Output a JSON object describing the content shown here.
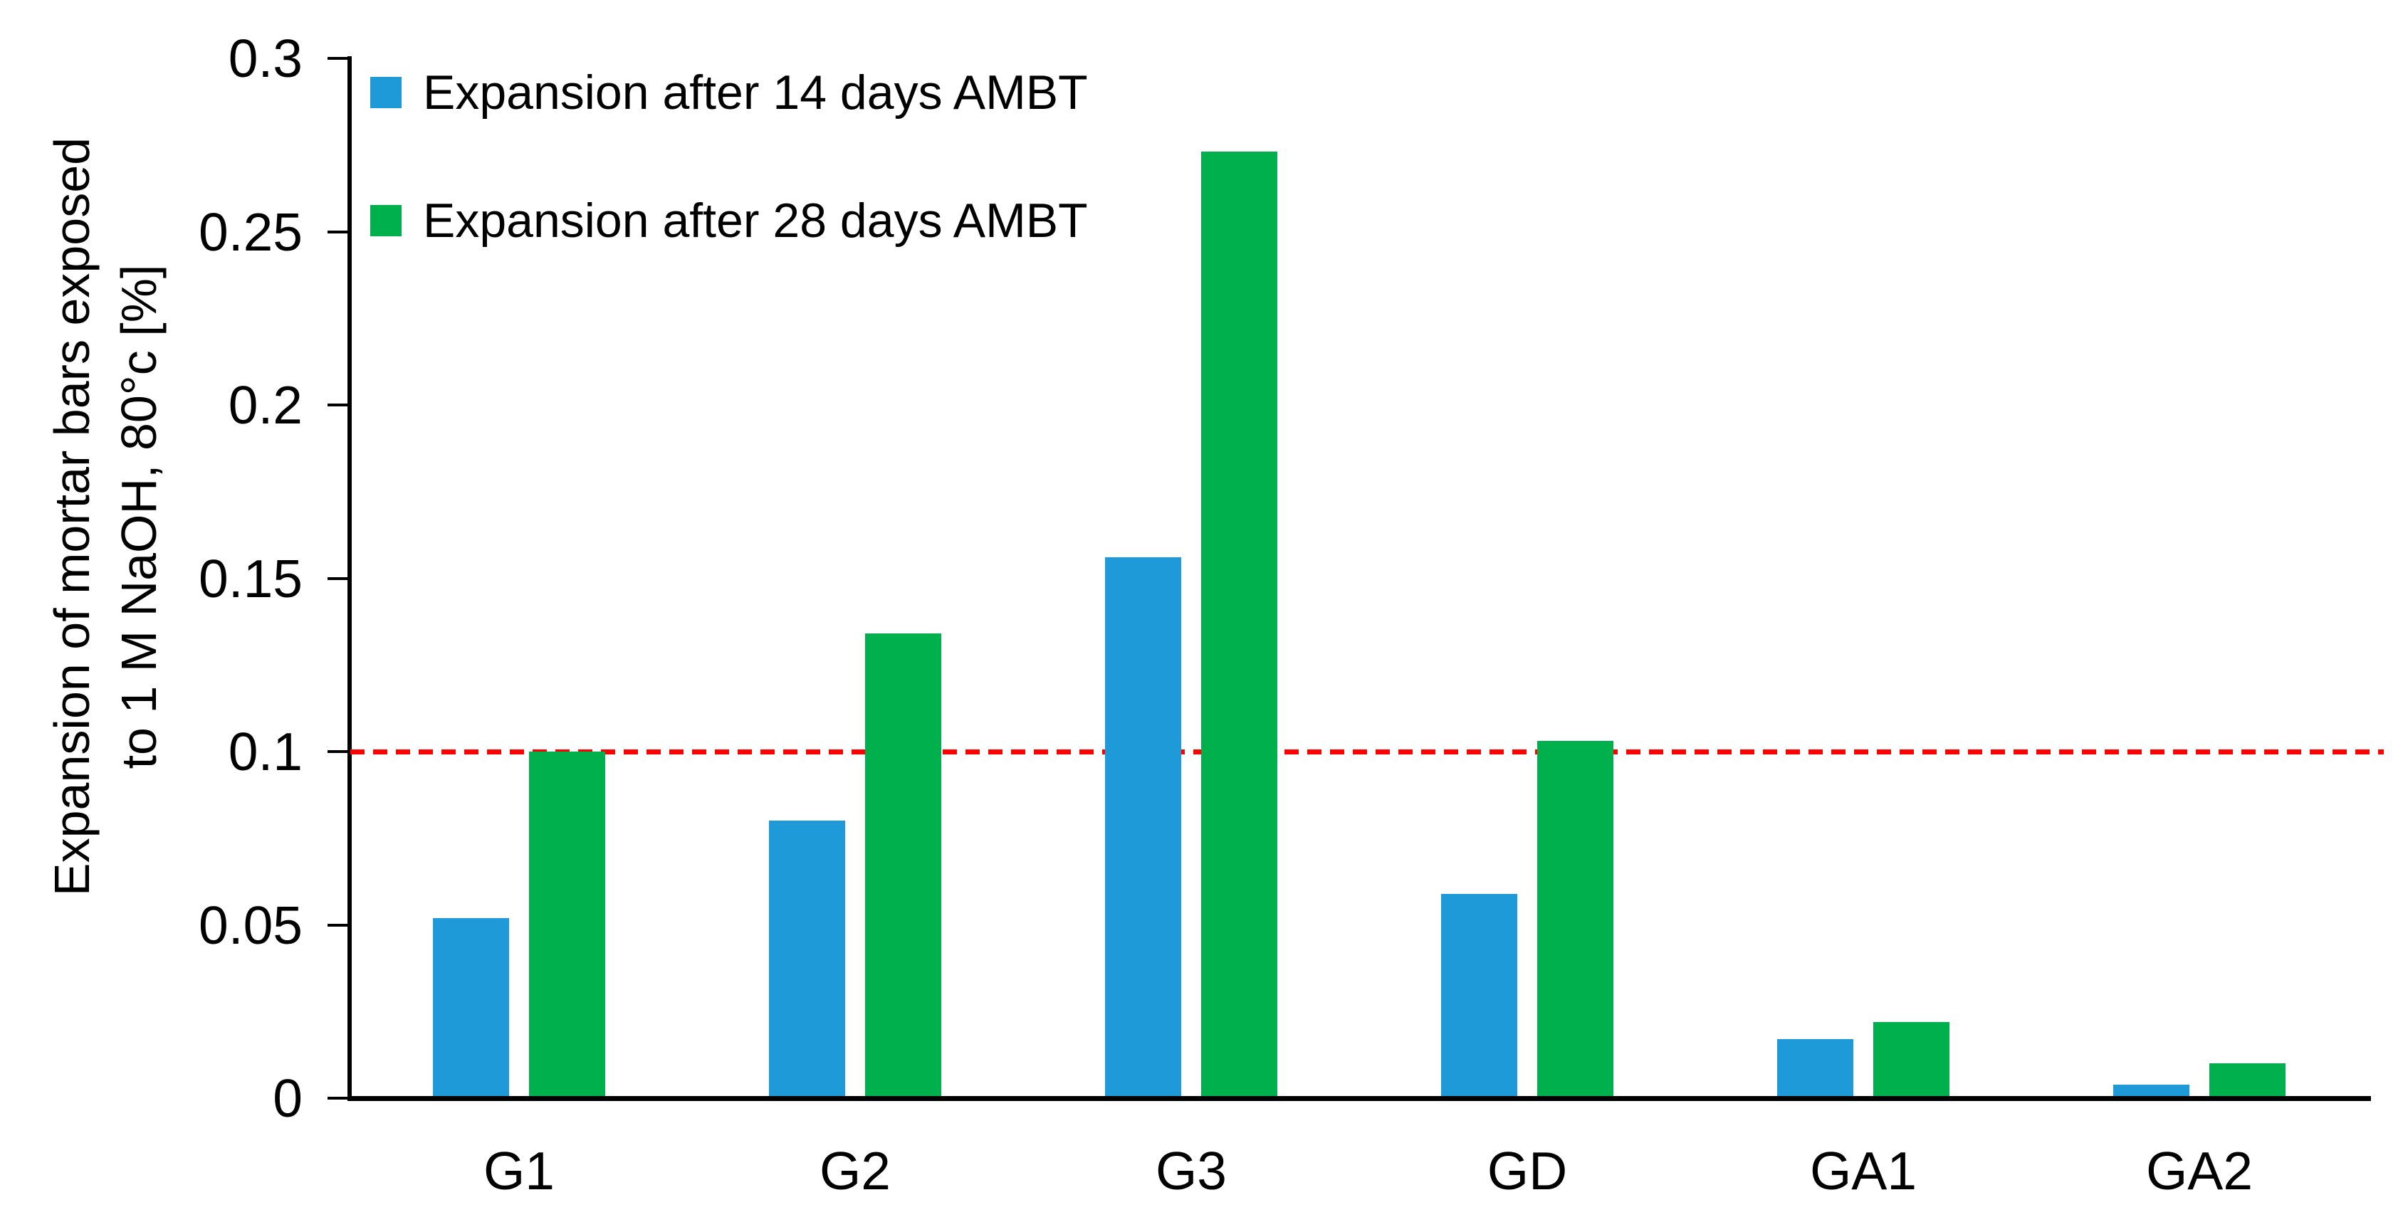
{
  "chart_data": {
    "type": "bar",
    "title": "",
    "categories": [
      "G1",
      "G2",
      "G3",
      "GD",
      "GA1",
      "GA2"
    ],
    "series": [
      {
        "name": "Expansion after 14 days AMBT",
        "color": "#1F9AD8",
        "values": [
          0.052,
          0.08,
          0.156,
          0.059,
          0.017,
          0.004
        ]
      },
      {
        "name": "Expansion after 28 days AMBT",
        "color": "#00B04C",
        "values": [
          0.1,
          0.134,
          0.273,
          0.103,
          0.022,
          0.01
        ]
      }
    ],
    "ylabel_line1": "Expansion of mortar bars exposed",
    "ylabel_line2": "to 1 M NaOH, 80°c [%]",
    "xlabel": "",
    "ylim": [
      0,
      0.3
    ],
    "yticks": [
      {
        "value": 0,
        "label": "0"
      },
      {
        "value": 0.05,
        "label": "0.05"
      },
      {
        "value": 0.1,
        "label": "0.1"
      },
      {
        "value": 0.15,
        "label": "0.15"
      },
      {
        "value": 0.2,
        "label": "0.2"
      },
      {
        "value": 0.25,
        "label": "0.25"
      },
      {
        "value": 0.3,
        "label": "0.3"
      }
    ],
    "threshold": {
      "value": 0.1,
      "color": "#FF0000",
      "style": "dashed"
    },
    "legend_position": "top-left",
    "grid": false,
    "background": "#FFFFFF",
    "axis_color": "#000000"
  }
}
